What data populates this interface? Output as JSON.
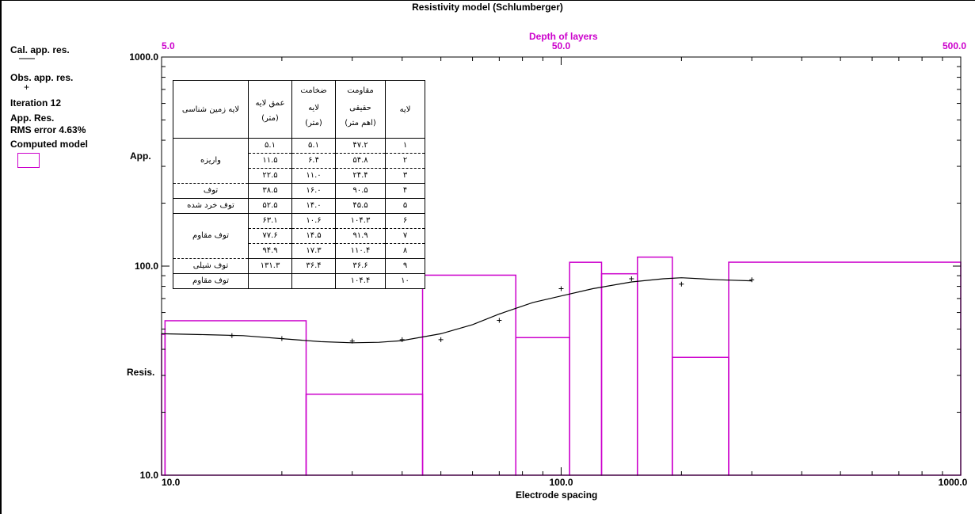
{
  "title": "Resistivity model (Schlumberger)",
  "sidebar": {
    "cal_label": "Cal. app. res.",
    "obs_label": "Obs. app. res.",
    "obs_marker": "+",
    "iteration": "Iteration 12",
    "app_res": "App. Res.",
    "rms": "RMS error 4.63%",
    "computed_model": "Computed model"
  },
  "colors": {
    "model": "#cc00cc",
    "curve": "#000000"
  },
  "chart_data": {
    "type": "line",
    "title": "Resistivity model (Schlumberger)",
    "xlabel": "Electrode spacing",
    "ylabel": "App. Resis.",
    "ylabel_top": "App.",
    "ylabel_bottom": "Resis.",
    "top_axis_label": "Depth of layers",
    "x_scale": "log",
    "y_scale": "log",
    "xlim": [
      10,
      1000
    ],
    "ylim": [
      10,
      1000
    ],
    "top_xlim": [
      5,
      500
    ],
    "x_tick_labels": [
      "10.0",
      "100.0",
      "1000.0"
    ],
    "y_tick_labels": [
      "10.0",
      "100.0",
      "1000.0"
    ],
    "top_tick_labels": [
      "5.0",
      "50.0",
      "500.0"
    ],
    "series": [
      {
        "name": "Cal. app. res.",
        "type": "line",
        "x": [
          10,
          13,
          16,
          20,
          25,
          30,
          35,
          40,
          50,
          60,
          70,
          85,
          100,
          120,
          150,
          180,
          200,
          250,
          300
        ],
        "y": [
          47.5,
          47,
          46.5,
          45,
          43.5,
          43,
          43.2,
          44,
          47.5,
          52.5,
          59,
          67,
          72,
          78,
          84,
          87,
          88,
          86,
          85
        ]
      },
      {
        "name": "Obs. app. res.",
        "type": "scatter",
        "x": [
          15,
          20,
          30,
          40,
          50,
          70,
          100,
          150,
          200,
          300
        ],
        "y": [
          46.5,
          45,
          43.8,
          44.5,
          44.5,
          55,
          78,
          87,
          82,
          86
        ]
      },
      {
        "name": "Computed model",
        "type": "step",
        "depth_boundaries": [
          5.1,
          11.5,
          22.5,
          38.5,
          52.5,
          63.1,
          77.6,
          94.9,
          131.3
        ],
        "resistivity": [
          47.2,
          54.8,
          24.4,
          90.5,
          45.5,
          104.3,
          91.9,
          110.4,
          36.6,
          104.4
        ]
      }
    ]
  },
  "table": {
    "headers": [
      "لایه",
      "مقاومت حقیقی",
      "ضخامت لایه",
      "عمق لایه",
      "لایه زمین شناسی"
    ],
    "units": [
      "",
      "(اهم متر)",
      "(متر)",
      "(متر)",
      ""
    ],
    "rows": [
      [
        "۱",
        "۴۷.۲",
        "۵.۱",
        "۵.۱"
      ],
      [
        "۲",
        "۵۴.۸",
        "۶.۴",
        "۱۱.۵"
      ],
      [
        "۳",
        "۲۴.۴",
        "۱۱.۰",
        "۲۲.۵"
      ],
      [
        "۴",
        "۹۰.۵",
        "۱۶.۰",
        "۳۸.۵"
      ],
      [
        "۵",
        "۴۵.۵",
        "۱۴.۰",
        "۵۲.۵"
      ],
      [
        "۶",
        "۱۰۴.۳",
        "۱۰.۶",
        "۶۳.۱"
      ],
      [
        "۷",
        "۹۱.۹",
        "۱۴.۵",
        "۷۷.۶"
      ],
      [
        "۸",
        "۱۱۰.۴",
        "۱۷.۳",
        "۹۴.۹"
      ],
      [
        "۹",
        "۳۶.۶",
        "۳۶.۴",
        "۱۳۱.۳"
      ],
      [
        "۱۰",
        "۱۰۴.۴",
        "",
        ""
      ]
    ],
    "geology": [
      "واریزه",
      "توف",
      "توف خرد شده",
      "توف مقاوم",
      "توف شیلی",
      "توف مقاوم"
    ]
  }
}
